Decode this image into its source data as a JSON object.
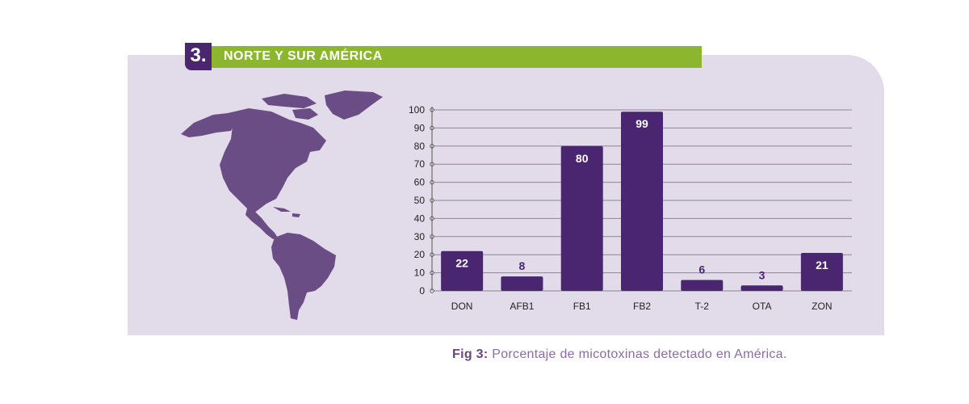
{
  "header": {
    "number": "3.",
    "title": "NORTE Y SUR AMÉRICA"
  },
  "caption": {
    "lead": "Fig 3:",
    "text": "Porcentaje de micotoxinas detectado en América."
  },
  "colors": {
    "bar": "#4a2670",
    "panel": "#e2dbea",
    "header_bar": "#8db62f",
    "map": "#6b4d85"
  },
  "map": {
    "icon": "americas-map-icon"
  },
  "chart_data": {
    "type": "bar",
    "categories": [
      "DON",
      "AFB1",
      "FB1",
      "FB2",
      "T-2",
      "OTA",
      "ZON"
    ],
    "values": [
      22,
      8,
      80,
      99,
      6,
      3,
      21
    ],
    "data_labels": [
      "22",
      "8",
      "80",
      "99",
      "6",
      "3",
      "21"
    ],
    "yticks": [
      0,
      10,
      20,
      30,
      40,
      50,
      60,
      70,
      80,
      90,
      100
    ],
    "ylim": [
      0,
      100
    ],
    "grid": true,
    "title": "",
    "xlabel": "",
    "ylabel": ""
  }
}
